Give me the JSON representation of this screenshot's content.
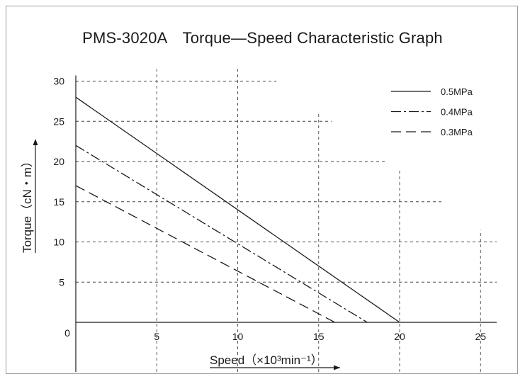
{
  "chart_data": {
    "type": "line",
    "title": "PMS-3020A　Torque—Speed Characteristic Graph",
    "xlabel": "Speed（×10³min⁻¹）",
    "ylabel": "Torque（cN・m）",
    "xlim": [
      0,
      26
    ],
    "ylim": [
      0,
      30
    ],
    "origin_label": "0",
    "x_ticks": [
      5,
      10,
      15,
      20,
      25
    ],
    "y_ticks": [
      5,
      10,
      15,
      20,
      25,
      30
    ],
    "grid": true,
    "legend_position": "top-right",
    "series": [
      {
        "name": "0.5MPa",
        "style": "solid",
        "x": [
          0,
          20
        ],
        "y": [
          28,
          0
        ]
      },
      {
        "name": "0.4MPa",
        "style": "dash-dot",
        "x": [
          0,
          18
        ],
        "y": [
          22,
          0
        ]
      },
      {
        "name": "0.3MPa",
        "style": "dashed",
        "x": [
          0,
          16
        ],
        "y": [
          17,
          0
        ]
      }
    ]
  }
}
